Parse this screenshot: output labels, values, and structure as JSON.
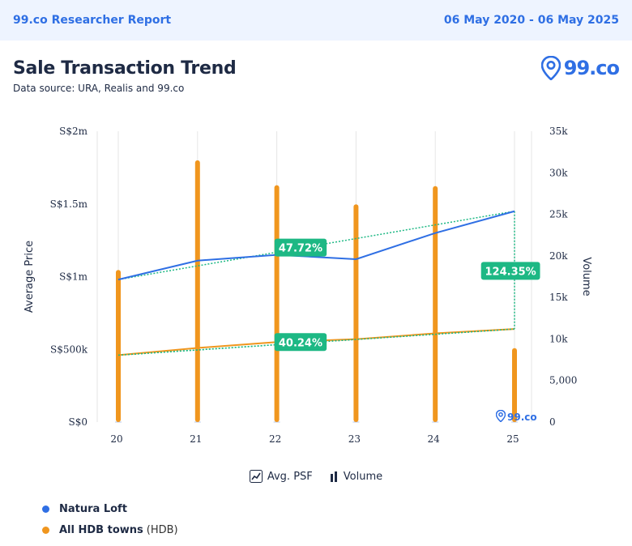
{
  "header": {
    "brand": "99.co Researcher Report",
    "date_range": "06 May 2020 - 06 May 2025"
  },
  "title": "Sale Transaction Trend",
  "source": "Data source: URA, Realis and 99.co",
  "logo_text": "99.co",
  "watermark_text": "99.co",
  "legend": {
    "avg_psf": "Avg. PSF",
    "volume": "Volume"
  },
  "series_legend": [
    {
      "name": "Natura Loft",
      "suffix": "",
      "color": "#2f6fe4"
    },
    {
      "name": "All HDB towns",
      "suffix": "(HDB)",
      "color": "#f0961e"
    }
  ],
  "colors": {
    "natura": "#2f6fe4",
    "hdb": "#f0961e",
    "trend": "#1db884",
    "badge": "#1db884",
    "grid": "#e6e6e6"
  },
  "chart_data": {
    "type": "bar+line",
    "categories": [
      "20",
      "21",
      "22",
      "23",
      "24",
      "25"
    ],
    "y_left": {
      "label": "Average Price",
      "ylim": [
        0,
        2000000
      ],
      "ticks": [
        0,
        500000,
        1000000,
        1500000,
        2000000
      ],
      "tick_labels": [
        "S$0",
        "S$500k",
        "S$1m",
        "S$1.5m",
        "S$2m"
      ]
    },
    "y_right": {
      "label": "Volume",
      "ylim": [
        0,
        35000
      ],
      "ticks": [
        0,
        5000,
        10000,
        15000,
        20000,
        25000,
        30000,
        35000
      ],
      "tick_labels": [
        "0",
        "5,000",
        "10k",
        "15k",
        "20k",
        "25k",
        "30k",
        "35k"
      ]
    },
    "bars": {
      "name": "Volume",
      "values": [
        18300,
        31500,
        28500,
        26200,
        28400,
        8900
      ]
    },
    "lines": [
      {
        "name": "Natura Loft",
        "values": [
          980000,
          1110000,
          1150000,
          1120000,
          1300000,
          1450000
        ]
      },
      {
        "name": "All HDB towns",
        "values": [
          460000,
          510000,
          550000,
          570000,
          610000,
          640000
        ]
      }
    ],
    "annotations": [
      {
        "label": "47.72%",
        "at_category": 2.3,
        "value": 1200000
      },
      {
        "label": "40.24%",
        "at_category": 2.3,
        "value": 550000
      },
      {
        "label": "124.35%",
        "at_category": 4.95,
        "value": 1040000
      }
    ]
  }
}
